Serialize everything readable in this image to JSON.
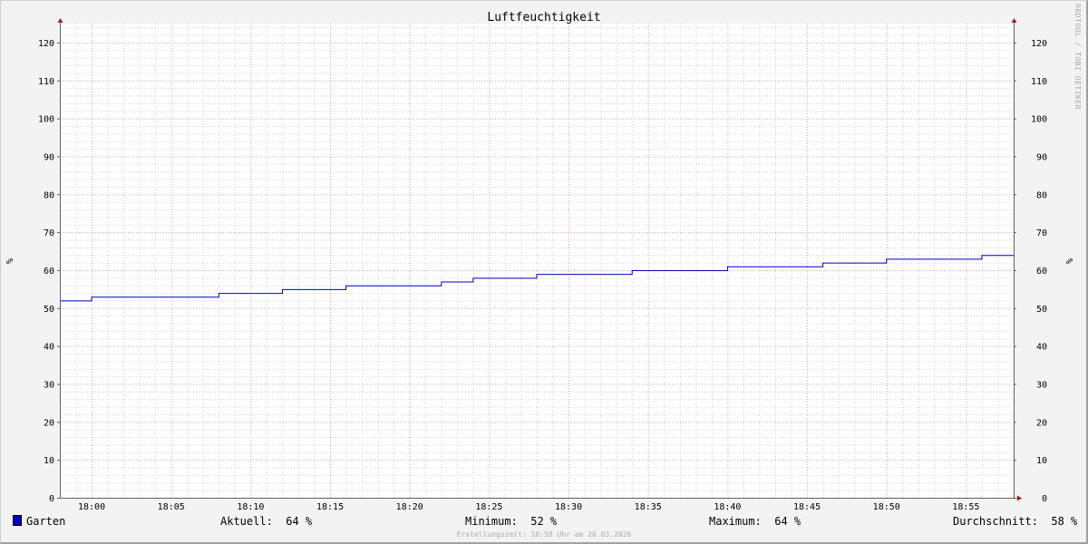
{
  "chart_data": {
    "type": "line",
    "title": "Luftfeuchtigkeit",
    "ylabel": "%",
    "ylim": [
      0,
      125
    ],
    "y_ticks": [
      0,
      10,
      20,
      30,
      40,
      50,
      60,
      70,
      80,
      90,
      100,
      110,
      120
    ],
    "x_range": [
      "17:58",
      "18:58"
    ],
    "x_tick_labels": [
      "18:00",
      "18:05",
      "18:10",
      "18:15",
      "18:20",
      "18:25",
      "18:30",
      "18:35",
      "18:40",
      "18:45",
      "18:50",
      "18:55"
    ],
    "grid": true,
    "step": true,
    "series": [
      {
        "name": "Garten",
        "color": "#0000c0",
        "points": [
          {
            "x": "17:58",
            "y": 52
          },
          {
            "x": "18:00",
            "y": 53
          },
          {
            "x": "18:08",
            "y": 54
          },
          {
            "x": "18:12",
            "y": 55
          },
          {
            "x": "18:16",
            "y": 56
          },
          {
            "x": "18:22",
            "y": 57
          },
          {
            "x": "18:24",
            "y": 58
          },
          {
            "x": "18:28",
            "y": 59
          },
          {
            "x": "18:34",
            "y": 60
          },
          {
            "x": "18:40",
            "y": 61
          },
          {
            "x": "18:46",
            "y": 62
          },
          {
            "x": "18:50",
            "y": 63
          },
          {
            "x": "18:56",
            "y": 64
          },
          {
            "x": "18:58",
            "y": 64
          }
        ]
      }
    ]
  },
  "legend": {
    "series_name": "Garten",
    "current": "Aktuell:  64 %",
    "minimum": "Minimum:  52 %",
    "maximum": "Maximum:  64 %",
    "average": "Durchschnitt:  58 %"
  },
  "footer": "Erstellungszeit: 18:58 Uhr am 20.03.2026",
  "watermark": "RRDTOOL / TOBI OETIKER",
  "colors": {
    "major_grid": "#e0a0a0",
    "minor_grid": "#d0d0d0",
    "axis": "#606060",
    "arrow": "#a02020",
    "canvas": "#ffffff"
  }
}
